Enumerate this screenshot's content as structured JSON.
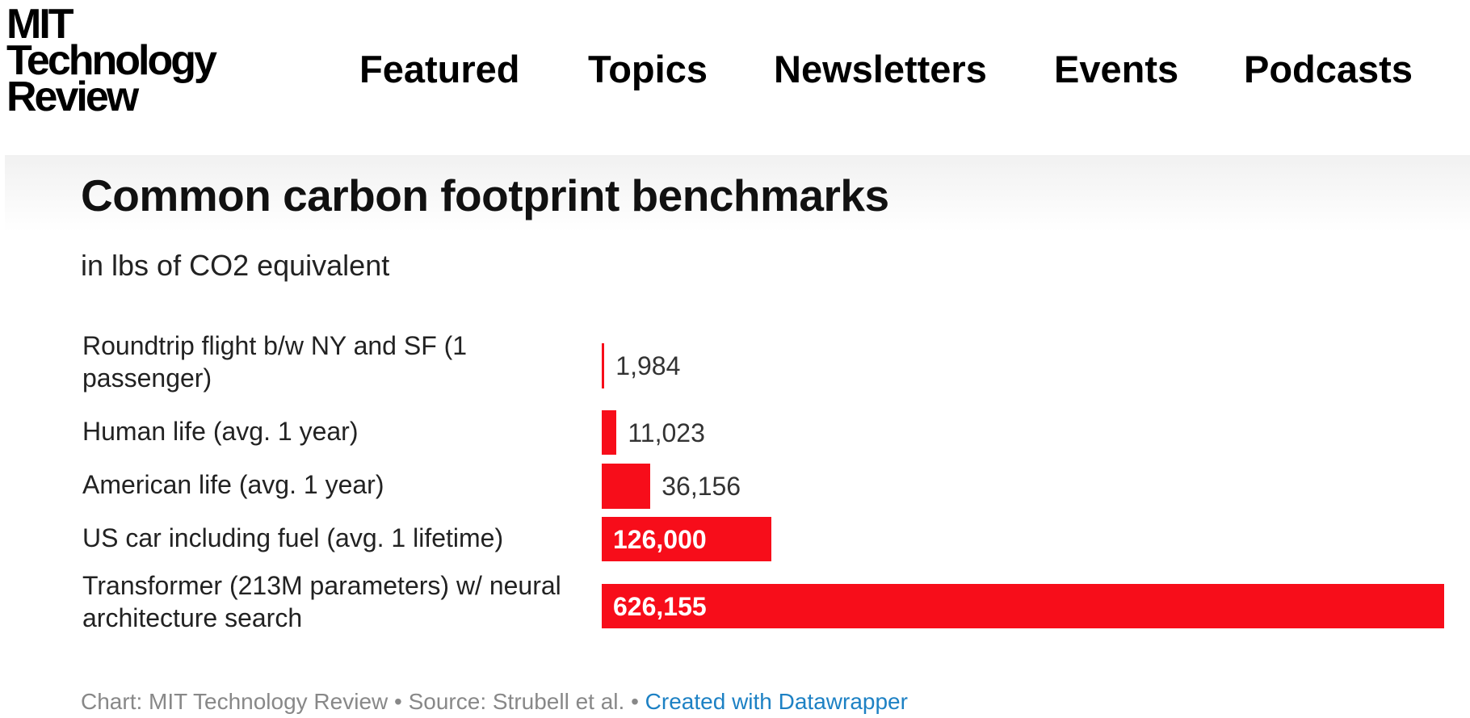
{
  "header": {
    "logo_lines": [
      "MIT",
      "Technology",
      "Review"
    ],
    "nav": [
      "Featured",
      "Topics",
      "Newsletters",
      "Events",
      "Podcasts"
    ]
  },
  "chart_data": {
    "type": "bar",
    "orientation": "horizontal",
    "title": "Common carbon footprint benchmarks",
    "subtitle": "in lbs of CO2 equivalent",
    "categories": [
      "Roundtrip flight b/w NY and SF (1 passenger)",
      "Human life (avg. 1 year)",
      "American life (avg. 1 year)",
      "US car including fuel (avg. 1 lifetime)",
      "Transformer (213M parameters) w/ neural architecture search"
    ],
    "values": [
      1984,
      11023,
      36156,
      126000,
      626155
    ],
    "value_labels": [
      "1,984",
      "11,023",
      "36,156",
      "126,000",
      "626,155"
    ],
    "bar_color": "#f70d1a",
    "xlim": [
      0,
      626155
    ],
    "grid": false,
    "legend": "none"
  },
  "footer": {
    "credit": "Chart: MIT Technology Review • Source: Strubell et al. • ",
    "link": "Created with Datawrapper",
    "link_color": "#1d81c4"
  }
}
